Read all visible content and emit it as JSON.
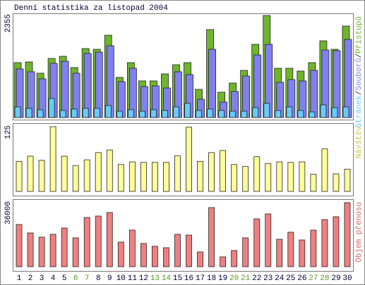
{
  "chart_data": [
    {
      "type": "bar",
      "title": "Denní statistika za listopad 2004",
      "ylim": [
        0,
        2355
      ],
      "yticks": [
        2355
      ],
      "legend_separator": "/",
      "series": [
        {
          "name": "Přístupů",
          "color": "#6fb52c",
          "values": [
            1267,
            1283,
            1023,
            1364,
            1413,
            1153,
            1592,
            1575,
            1900,
            926,
            1267,
            845,
            845,
            1007,
            1218,
            1267,
            650,
            2030,
            585,
            796,
            1088,
            1689,
            2355,
            1137,
            1137,
            1072,
            1267,
            1770,
            1575,
            2111
          ]
        },
        {
          "name": "Souborů",
          "color": "#8080f0",
          "values": [
            1121,
            1056,
            893,
            1250,
            1299,
            1023,
            1478,
            1510,
            1656,
            828,
            1137,
            715,
            731,
            682,
            1056,
            991,
            422,
            1575,
            357,
            601,
            958,
            1445,
            1689,
            812,
            877,
            845,
            1088,
            1559,
            1543,
            1803
          ]
        },
        {
          "name": "Stránek",
          "color": "#66ccff",
          "values": [
            244,
            211,
            179,
            438,
            162,
            195,
            211,
            211,
            276,
            146,
            179,
            146,
            179,
            162,
            244,
            325,
            162,
            195,
            162,
            146,
            146,
            227,
            325,
            162,
            244,
            162,
            130,
            292,
            227,
            244
          ]
        }
      ]
    },
    {
      "type": "bar",
      "ylim": [
        0,
        125
      ],
      "yticks": [
        125
      ],
      "series": [
        {
          "name": "Návštěv",
          "color": "#ffff99",
          "label_color": "#c8c840",
          "values": [
            58,
            68,
            60,
            125,
            68,
            50,
            61,
            75,
            80,
            52,
            57,
            56,
            56,
            56,
            69,
            124,
            58,
            75,
            79,
            52,
            48,
            67,
            54,
            57,
            56,
            57,
            33,
            82,
            34,
            43
          ]
        }
      ]
    },
    {
      "type": "bar",
      "ylim": [
        0,
        36000
      ],
      "yticks": [
        36000
      ],
      "series": [
        {
          "name": "Objem přenosu",
          "color": "#f08080",
          "label_color": "#e06060",
          "values": [
            23736,
            18989,
            16615,
            18198,
            21758,
            16220,
            27692,
            28484,
            30462,
            13846,
            20571,
            13055,
            11473,
            10681,
            18198,
            17802,
            8308,
            33231,
            5538,
            9099,
            16220,
            26901,
            29670,
            15429,
            19385,
            15033,
            20571,
            26505,
            28088,
            36000
          ]
        }
      ],
      "categories": [
        "1",
        "2",
        "3",
        "4",
        "5",
        "6",
        "7",
        "8",
        "9",
        "10",
        "11",
        "12",
        "13",
        "14",
        "15",
        "16",
        "17",
        "18",
        "19",
        "20",
        "21",
        "22",
        "23",
        "24",
        "25",
        "26",
        "27",
        "28",
        "29",
        "30"
      ],
      "label_colors": [
        "#000033",
        "#000033",
        "#000033",
        "#000033",
        "#000033",
        "#5a9a2a",
        "#5a9a2a",
        "#000033",
        "#000033",
        "#000033",
        "#000033",
        "#000033",
        "#5a9a2a",
        "#5a9a2a",
        "#000033",
        "#000033",
        "#000033",
        "#000033",
        "#000033",
        "#5a9a2a",
        "#5a9a2a",
        "#000033",
        "#000033",
        "#000033",
        "#000033",
        "#000033",
        "#5a9a2a",
        "#5a9a2a",
        "#000033",
        "#000033"
      ]
    }
  ]
}
